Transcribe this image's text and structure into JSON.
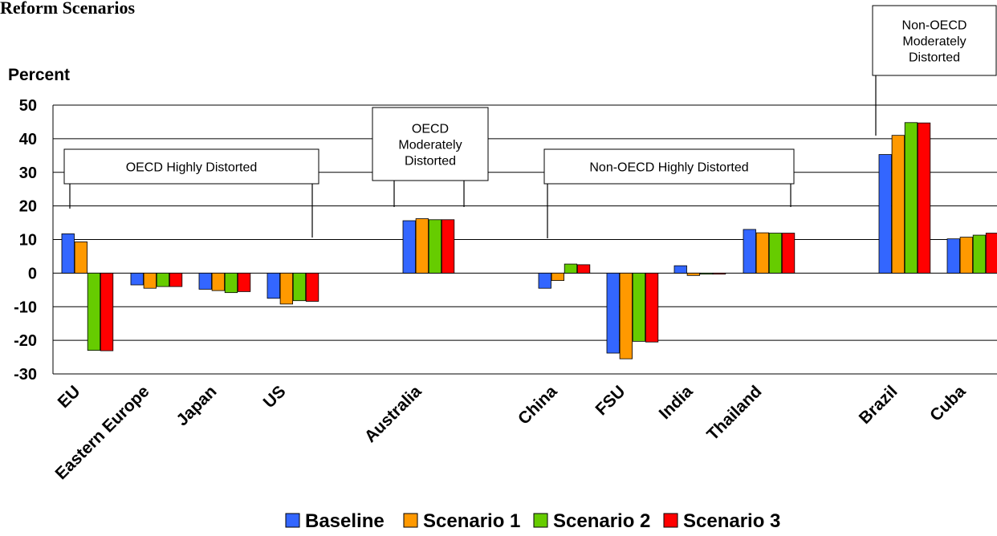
{
  "chart_data": {
    "type": "bar",
    "title": "Reform Scenarios",
    "ylabel": "Percent",
    "ylim": [
      -30,
      50
    ],
    "yticks": [
      50,
      40,
      30,
      20,
      10,
      0,
      -10,
      -20,
      -30
    ],
    "grid": true,
    "legend_position": "bottom",
    "categories": [
      "EU",
      "Eastern Europe",
      "Japan",
      "US",
      "Australia",
      "China",
      "FSU",
      "India",
      "Thailand",
      "Brazil",
      "Cuba"
    ],
    "series": [
      {
        "name": "Baseline",
        "color": "#3366ff",
        "values": [
          11.7,
          -3.5,
          -4.8,
          -7.5,
          15.6,
          -4.5,
          -23.8,
          2.2,
          13.0,
          35.3,
          10.2
        ]
      },
      {
        "name": "Scenario 1",
        "color": "#ff9900",
        "values": [
          9.3,
          -4.5,
          -5.2,
          -9.2,
          16.2,
          -2.2,
          -25.5,
          -0.7,
          12.0,
          41.0,
          10.7
        ]
      },
      {
        "name": "Scenario 2",
        "color": "#66cc00",
        "values": [
          -23.0,
          -4.0,
          -5.8,
          -8.2,
          15.9,
          2.7,
          -20.3,
          -0.3,
          11.9,
          44.8,
          11.3
        ]
      },
      {
        "name": "Scenario 3",
        "color": "#ff0000",
        "values": [
          -23.1,
          -4.0,
          -5.5,
          -8.4,
          15.9,
          2.5,
          -20.5,
          -0.3,
          11.9,
          44.7,
          11.9
        ]
      }
    ],
    "annotations": [
      {
        "label": "OECD Highly Distorted",
        "lines": [
          "OECD Highly Distorted"
        ]
      },
      {
        "label": "OECD Moderately Distorted",
        "lines": [
          "OECD",
          "Moderately",
          "Distorted"
        ]
      },
      {
        "label": "Non-OECD Highly Distorted",
        "lines": [
          "Non-OECD Highly Distorted"
        ]
      },
      {
        "label": "Non-OECD Moderately Distorted",
        "lines": [
          "Non-OECD",
          "Moderately",
          "Distorted"
        ]
      }
    ]
  }
}
